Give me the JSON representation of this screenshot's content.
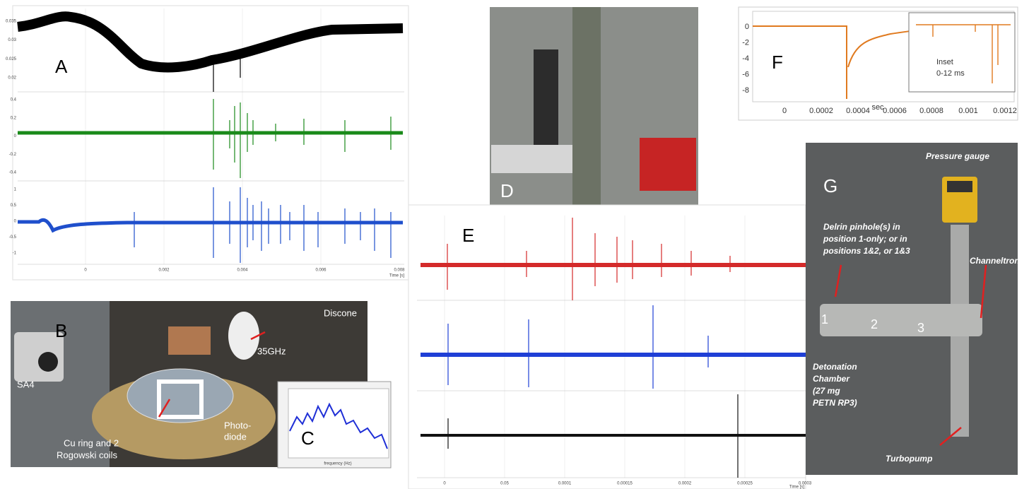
{
  "panels": {
    "a": {
      "label": "A",
      "y_ticks_top": [
        "0.035",
        "0.03",
        "0.025",
        "0.02"
      ],
      "y_ticks_mid": [
        "0.4",
        "0.2",
        "0",
        "-0.2",
        "-0.4"
      ],
      "y_ticks_bottom": [
        "1",
        "0.5",
        "0",
        "-0.5",
        "-1"
      ],
      "x_ticks": [
        "0",
        "0.002",
        "0.004",
        "0.006",
        "0.008"
      ],
      "x_label": "Time [s]"
    },
    "b": {
      "label": "B",
      "annotations": [
        "SA4",
        "Cu ring and 2",
        "Rogowski coils",
        "35GHz",
        "Discone",
        "Photo-",
        "diode"
      ]
    },
    "c": {
      "label": "C",
      "x_label": "frequency (Hz)"
    },
    "d": {
      "label": "D"
    },
    "e": {
      "label": "E",
      "x_ticks": [
        "0",
        "0.05",
        "0.0001",
        "0.00015",
        "0.0002",
        "0.00025",
        "0.0003"
      ],
      "x_label": "Time [s]"
    },
    "f": {
      "label": "F",
      "y_ticks": [
        "0",
        "-2",
        "-4",
        "-6",
        "-8"
      ],
      "x_ticks": [
        "0",
        "0.0002",
        "0.0004",
        "0.0006",
        "0.0008",
        "0.001",
        "0.0012"
      ],
      "x_label": "sec",
      "inset": [
        "Inset",
        "0-12 ms"
      ]
    },
    "g": {
      "label": "G",
      "annotations": [
        "Pressure gauge",
        "Delrin pinhole(s) in",
        "position 1-only; or in",
        "positions 1&2, or 1&3",
        "Channeltron",
        "Detonation",
        "Chamber",
        "(27 mg",
        "PETN RP3)",
        "Turbopump"
      ],
      "positions": [
        "1",
        "2",
        "3"
      ]
    }
  }
}
